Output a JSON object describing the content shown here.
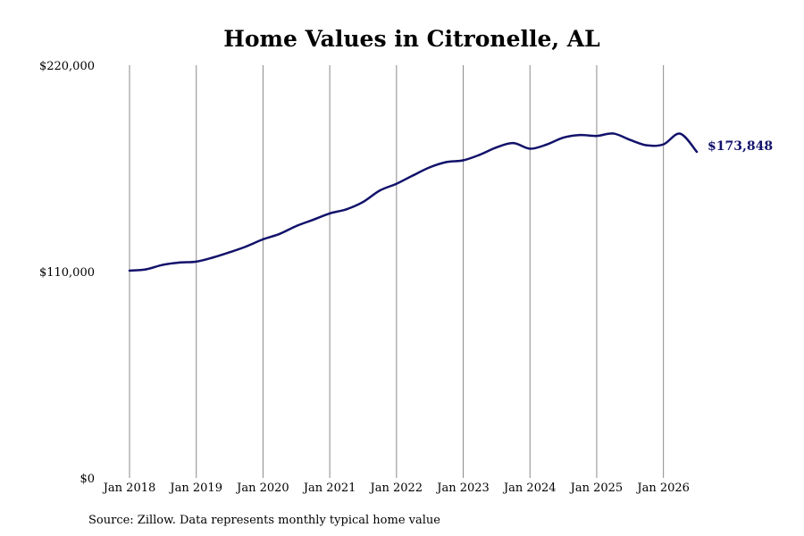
{
  "colors": {
    "line": "#12126b",
    "grid": "#8a8a8a",
    "text": "#000000",
    "background": "#ffffff"
  },
  "chart_data": {
    "type": "line",
    "title": "Home Values in Citronelle, AL",
    "xlabel": "",
    "ylabel": "",
    "ylim": [
      0,
      220000
    ],
    "xlim": [
      "2018-01",
      "2026-07"
    ],
    "grid": "vertical",
    "yticks": [
      {
        "value": 0,
        "label": "$0"
      },
      {
        "value": 110000,
        "label": "$110,000"
      },
      {
        "value": 220000,
        "label": "$220,000"
      }
    ],
    "xticks": [
      {
        "value": "2018-01",
        "label": "Jan 2018"
      },
      {
        "value": "2019-01",
        "label": "Jan 2019"
      },
      {
        "value": "2020-01",
        "label": "Jan 2020"
      },
      {
        "value": "2021-01",
        "label": "Jan 2021"
      },
      {
        "value": "2022-01",
        "label": "Jan 2022"
      },
      {
        "value": "2023-01",
        "label": "Jan 2023"
      },
      {
        "value": "2024-01",
        "label": "Jan 2024"
      },
      {
        "value": "2025-01",
        "label": "Jan 2025"
      },
      {
        "value": "2026-01",
        "label": "Jan 2026"
      }
    ],
    "end_label": "$173,848",
    "series": [
      {
        "name": "",
        "x": [
          "2018-01",
          "2018-04",
          "2018-07",
          "2018-10",
          "2019-01",
          "2019-04",
          "2019-07",
          "2019-10",
          "2020-01",
          "2020-04",
          "2020-07",
          "2020-10",
          "2021-01",
          "2021-04",
          "2021-07",
          "2021-10",
          "2022-01",
          "2022-04",
          "2022-07",
          "2022-10",
          "2023-01",
          "2023-04",
          "2023-07",
          "2023-10",
          "2024-01",
          "2024-04",
          "2024-07",
          "2024-10",
          "2025-01",
          "2025-04",
          "2025-07",
          "2025-10",
          "2026-01",
          "2026-04",
          "2026-07"
        ],
        "values": [
          110500,
          111200,
          113600,
          114800,
          115300,
          117500,
          120300,
          123400,
          127200,
          130100,
          134300,
          137600,
          141000,
          143200,
          147100,
          153200,
          156800,
          161300,
          165600,
          168400,
          169300,
          172300,
          176200,
          178500,
          175500,
          177700,
          181400,
          182800,
          182300,
          183600,
          180200,
          177300,
          177800,
          183500,
          173848
        ]
      }
    ]
  },
  "source_text": "Source: Zillow. Data represents monthly typical home value"
}
